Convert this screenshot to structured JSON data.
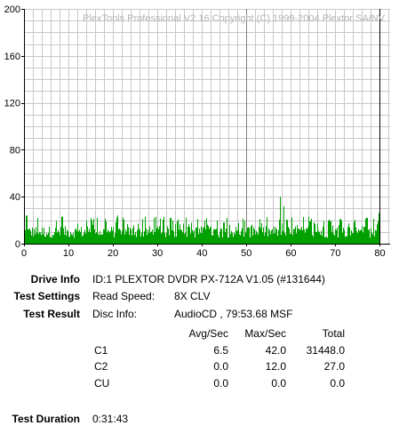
{
  "chart_data": {
    "type": "bar",
    "title": "PlexTools Professional V2.16 Copyright (C) 1999-2004 Plextor SA/NV",
    "xlabel": "",
    "ylabel": "",
    "xlim": [
      0,
      80
    ],
    "ylim": [
      0,
      200
    ],
    "x_ticks": [
      "0",
      "10",
      "20",
      "30",
      "40",
      "50",
      "60",
      "70",
      "80"
    ],
    "y_ticks": [
      "0",
      "40",
      "80",
      "120",
      "160",
      "200"
    ],
    "grid": true,
    "series": [
      {
        "metric": "C1",
        "color": "#00a000",
        "x_start": 0,
        "x_end": 79.9,
        "typical_range": [
          5,
          15
        ],
        "spikes": [
          {
            "x": 0.5,
            "value": 24
          },
          {
            "x": 3.0,
            "value": 22
          },
          {
            "x": 8.5,
            "value": 23
          },
          {
            "x": 15.0,
            "value": 22
          },
          {
            "x": 21.0,
            "value": 24
          },
          {
            "x": 26.5,
            "value": 21
          },
          {
            "x": 33.0,
            "value": 22
          },
          {
            "x": 39.0,
            "value": 21
          },
          {
            "x": 45.5,
            "value": 22
          },
          {
            "x": 53.0,
            "value": 21
          },
          {
            "x": 57.5,
            "value": 40
          },
          {
            "x": 58.3,
            "value": 32
          },
          {
            "x": 64.0,
            "value": 23
          },
          {
            "x": 71.0,
            "value": 21
          },
          {
            "x": 77.0,
            "value": 22
          },
          {
            "x": 79.7,
            "value": 26
          }
        ]
      }
    ],
    "marker_x": 80
  },
  "info": {
    "drive_info_label": "Drive Info",
    "drive_info_value": "ID:1 PLEXTOR DVDR PX-712A V1.05 (#131644)",
    "test_settings_label": "Test Settings",
    "read_speed_label": "Read Speed:",
    "read_speed_value": "8X CLV",
    "test_result_label": "Test Result",
    "disc_info_label": "Disc Info:",
    "disc_info_value": "AudioCD , 79:53.68 MSF",
    "test_duration_label": "Test Duration",
    "test_duration_value": "0:31:43"
  },
  "results": {
    "headers": [
      "Avg/Sec",
      "Max/Sec",
      "Total"
    ],
    "rows": [
      {
        "name": "C1",
        "avg": "6.5",
        "max": "42.0",
        "total": "31448.0"
      },
      {
        "name": "C2",
        "avg": "0.0",
        "max": "12.0",
        "total": "27.0"
      },
      {
        "name": "CU",
        "avg": "0.0",
        "max": "0.0",
        "total": "0.0"
      }
    ]
  }
}
